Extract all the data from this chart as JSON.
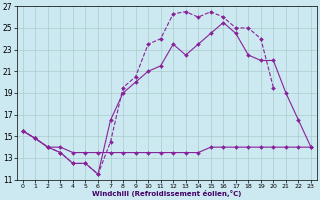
{
  "xlabel": "Windchill (Refroidissement éolien,°C)",
  "bg_color": "#cce8f0",
  "grid_color": "#aacccc",
  "line_color": "#882299",
  "xlim": [
    -0.5,
    23.5
  ],
  "ylim": [
    11,
    27
  ],
  "yticks": [
    11,
    13,
    15,
    17,
    19,
    21,
    23,
    25,
    27
  ],
  "xticks": [
    0,
    1,
    2,
    3,
    4,
    5,
    6,
    7,
    8,
    9,
    10,
    11,
    12,
    13,
    14,
    15,
    16,
    17,
    18,
    19,
    20,
    21,
    22,
    23
  ],
  "series": [
    {
      "x": [
        0,
        1,
        2,
        3,
        4,
        5,
        6,
        7,
        8,
        9,
        10,
        11,
        12,
        13,
        14,
        15,
        16,
        17,
        18,
        19,
        20
      ],
      "y": [
        15.5,
        14.8,
        14.0,
        13.5,
        12.5,
        12.5,
        11.5,
        14.5,
        19.5,
        20.5,
        23.5,
        24.0,
        26.3,
        26.5,
        26.0,
        26.5,
        26.0,
        25.0,
        25.0,
        24.0,
        19.5
      ],
      "linestyle": "--"
    },
    {
      "x": [
        0,
        1,
        2,
        3,
        4,
        5,
        6,
        7,
        8,
        9,
        10,
        11,
        12,
        13,
        14,
        15,
        16,
        17,
        18,
        19,
        20,
        21,
        22,
        23
      ],
      "y": [
        15.5,
        14.8,
        14.0,
        13.5,
        12.5,
        12.5,
        11.5,
        16.5,
        19.0,
        20.0,
        21.0,
        21.5,
        23.5,
        22.5,
        23.5,
        24.5,
        25.5,
        24.5,
        22.5,
        22.0,
        22.0,
        19.0,
        16.5,
        14.0
      ],
      "linestyle": "-"
    },
    {
      "x": [
        0,
        1,
        2,
        3,
        4,
        5,
        6,
        7,
        8,
        9,
        10,
        11,
        12,
        13,
        14,
        15,
        16,
        17,
        18,
        19,
        20,
        21,
        22,
        23
      ],
      "y": [
        15.5,
        14.8,
        14.0,
        14.0,
        13.5,
        13.5,
        13.5,
        13.5,
        13.5,
        13.5,
        13.5,
        13.5,
        13.5,
        13.5,
        13.5,
        14.0,
        14.0,
        14.0,
        14.0,
        14.0,
        14.0,
        14.0,
        14.0,
        14.0
      ],
      "linestyle": "-"
    }
  ]
}
